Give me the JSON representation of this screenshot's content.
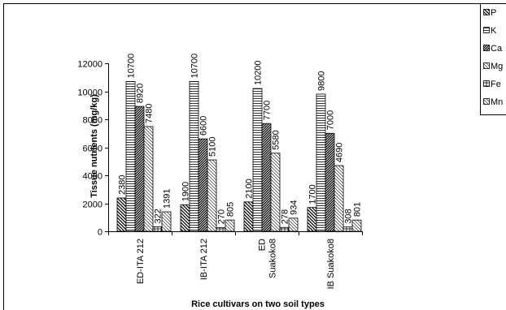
{
  "chart_data": {
    "type": "bar",
    "categories": [
      [
        "ED-ITA 212"
      ],
      [
        "IB-ITA 212"
      ],
      [
        "ED",
        "Suakoko8"
      ],
      [
        "IB Suakoko8"
      ]
    ],
    "series": [
      {
        "name": "P",
        "values": [
          2380,
          1900,
          2100,
          1700
        ]
      },
      {
        "name": "K",
        "values": [
          10700,
          10700,
          10200,
          9800
        ]
      },
      {
        "name": "Ca",
        "values": [
          8920,
          6600,
          7700,
          7000
        ]
      },
      {
        "name": "Mg",
        "values": [
          7480,
          5100,
          5580,
          4690
        ]
      },
      {
        "name": "Fe",
        "values": [
          322,
          270,
          278,
          308
        ]
      },
      {
        "name": "Mn",
        "values": [
          1391,
          805,
          934,
          801
        ]
      }
    ],
    "title": "",
    "xlabel": "Rice cultivars on two soil types",
    "ylabel": "Tissue nutrients (mg/kg)",
    "ylim": [
      0,
      12000
    ],
    "yticks": [
      0,
      2000,
      4000,
      6000,
      8000,
      10000,
      12000
    ],
    "legend_position": "top-right",
    "grid": false,
    "bar_color": "#000000"
  }
}
